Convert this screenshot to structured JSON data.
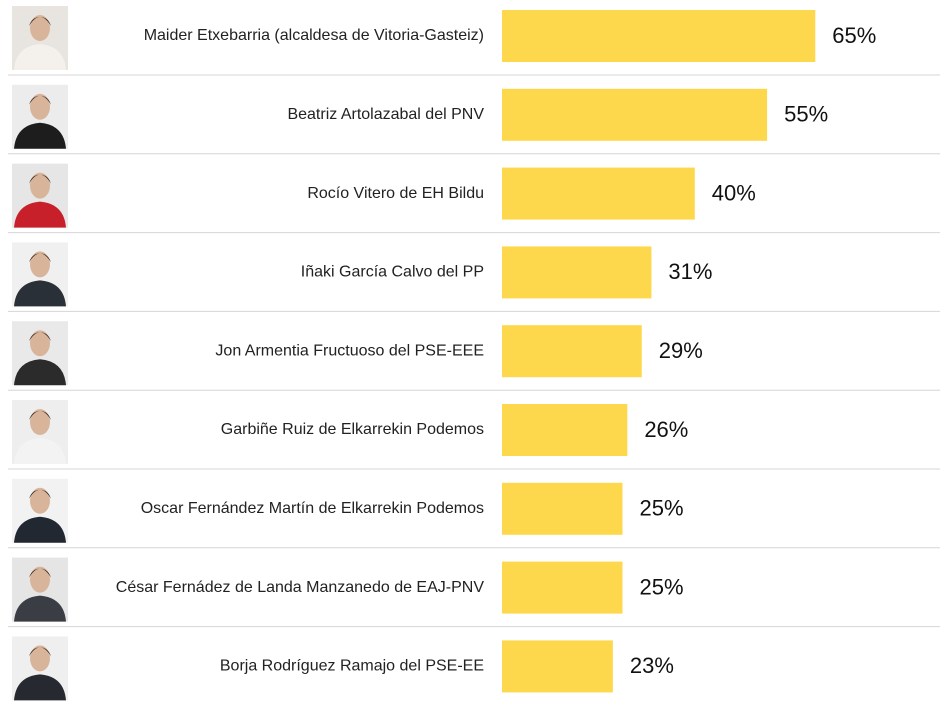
{
  "chart_data": {
    "type": "bar",
    "orientation": "horizontal",
    "color": "#fdd84c",
    "categories": [
      "Maider Etxebarria (alcaldesa de Vitoria-Gasteiz)",
      "Beatriz Artolazabal del PNV",
      "Rocío Vitero de EH Bildu",
      "Iñaki García Calvo del PP",
      "Jon Armentia Fructuoso del PSE-EEE",
      "Garbiñe Ruiz de Elkarrekin Podemos",
      "Oscar Fernández Martín de Elkarrekin Podemos",
      "César Fernádez de Landa Manzanedo de EAJ-PNV",
      "Borja Rodríguez Ramajo del PSE-EE"
    ],
    "values": [
      65,
      55,
      40,
      31,
      29,
      26,
      25,
      25,
      23
    ],
    "value_labels": [
      "65%",
      "55%",
      "40%",
      "31%",
      "29%",
      "26%",
      "25%",
      "25%",
      "23%"
    ]
  }
}
